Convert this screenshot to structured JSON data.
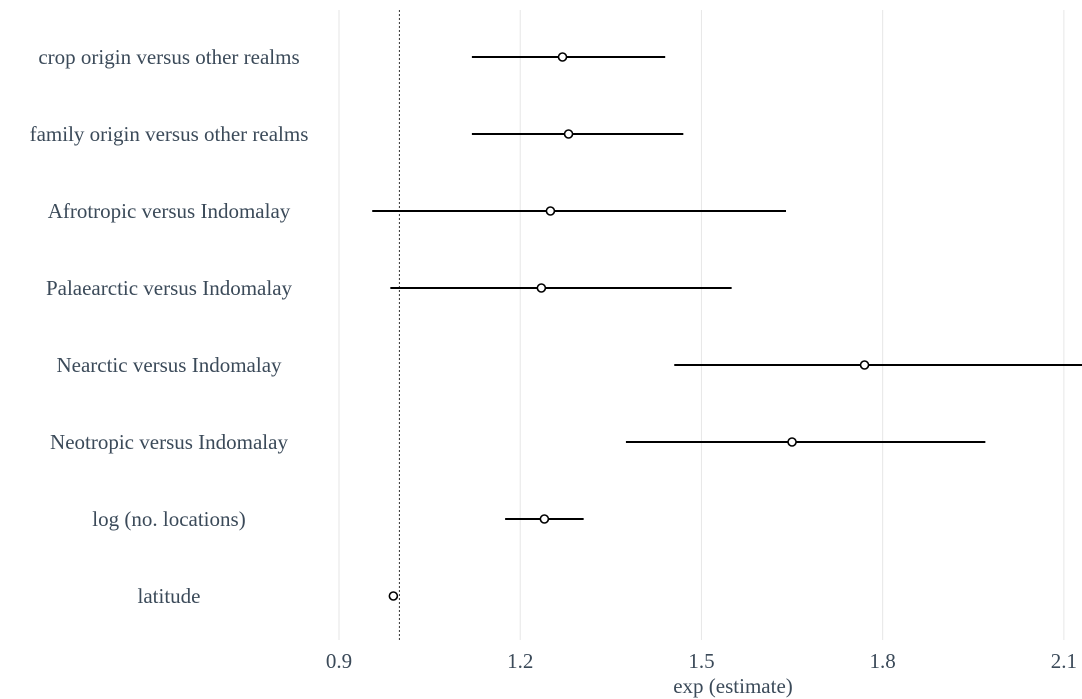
{
  "chart_data": {
    "type": "forest",
    "xlabel": "exp (estimate)",
    "xlim": [
      0.9,
      2.13
    ],
    "x_ticks": [
      0.9,
      1.2,
      1.5,
      1.8,
      2.1
    ],
    "x_tick_labels": [
      "0.9",
      "1.2",
      "1.5",
      "1.8",
      "2.1"
    ],
    "reference_line": 1.0,
    "grid": "vertical",
    "rows": [
      {
        "label": "crop origin versus other realms",
        "estimate": 1.27,
        "lower": 1.12,
        "upper": 1.44
      },
      {
        "label": "family origin versus other realms",
        "estimate": 1.28,
        "lower": 1.12,
        "upper": 1.47
      },
      {
        "label": "Afrotropic versus Indomalay",
        "estimate": 1.25,
        "lower": 0.955,
        "upper": 1.64
      },
      {
        "label": "Palaearctic versus Indomalay",
        "estimate": 1.235,
        "lower": 0.985,
        "upper": 1.55
      },
      {
        "label": "Nearctic versus Indomalay",
        "estimate": 1.77,
        "lower": 1.455,
        "upper": 2.13
      },
      {
        "label": "Neotropic versus Indomalay",
        "estimate": 1.65,
        "lower": 1.375,
        "upper": 1.97
      },
      {
        "label": "log (no. locations)",
        "estimate": 1.24,
        "lower": 1.175,
        "upper": 1.305
      },
      {
        "label": "latitude",
        "estimate": 0.99,
        "lower": 0.988,
        "upper": 0.992
      }
    ]
  }
}
